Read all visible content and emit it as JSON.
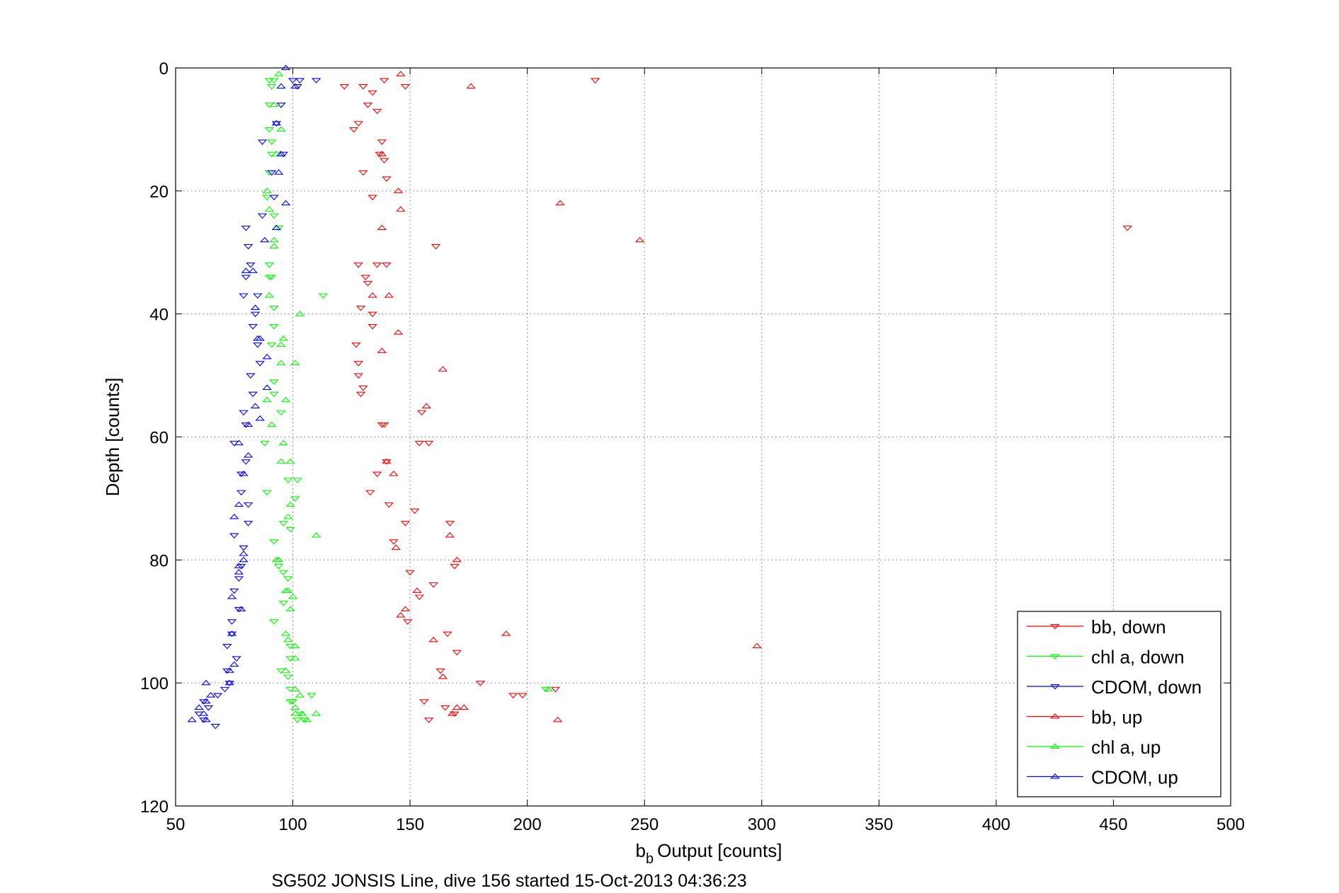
{
  "chart_data": {
    "type": "scatter",
    "xlabel_main": "Output [counts]",
    "xlabel_symbol": "b",
    "xlabel_subscript": "b",
    "ylabel": "Depth [counts]",
    "caption": "SG502 JONSIS Line, dive 156 started 15-Oct-2013 04:36:23",
    "xlim": [
      50,
      500
    ],
    "ylim": [
      0,
      120
    ],
    "y_reversed": true,
    "x_ticks": [
      50,
      100,
      150,
      200,
      250,
      300,
      350,
      400,
      450,
      500
    ],
    "y_ticks": [
      0,
      20,
      40,
      60,
      80,
      100,
      120
    ],
    "x_tick_labels": [
      "50",
      "100",
      "150",
      "200",
      "250",
      "300",
      "350",
      "400",
      "450",
      "500"
    ],
    "y_tick_labels": [
      "0",
      "20",
      "40",
      "60",
      "80",
      "100",
      "120"
    ],
    "grid": true,
    "legend_position": "bottom-right",
    "series": [
      {
        "name": "bb, down",
        "color": "#ff0000",
        "marker": "triangle-down",
        "points": [
          [
            130,
            3
          ],
          [
            134,
            4
          ],
          [
            122,
            3
          ],
          [
            139,
            2
          ],
          [
            148,
            3
          ],
          [
            229,
            2
          ],
          [
            132,
            6
          ],
          [
            136,
            7
          ],
          [
            126,
            10
          ],
          [
            128,
            9
          ],
          [
            138,
            12
          ],
          [
            137,
            14
          ],
          [
            139,
            15
          ],
          [
            130,
            17
          ],
          [
            134,
            21
          ],
          [
            140,
            18
          ],
          [
            161,
            29
          ],
          [
            456,
            26
          ],
          [
            136,
            32
          ],
          [
            128,
            32
          ],
          [
            131,
            34
          ],
          [
            132,
            35
          ],
          [
            129,
            39
          ],
          [
            134,
            40
          ],
          [
            134,
            42
          ],
          [
            127,
            45
          ],
          [
            128,
            48
          ],
          [
            128,
            50
          ],
          [
            130,
            52
          ],
          [
            129,
            53
          ],
          [
            140,
            32
          ],
          [
            139,
            58
          ],
          [
            138,
            58
          ],
          [
            155,
            56
          ],
          [
            140,
            64
          ],
          [
            136,
            66
          ],
          [
            133,
            69
          ],
          [
            141,
            71
          ],
          [
            152,
            72
          ],
          [
            158,
            61
          ],
          [
            154,
            61
          ],
          [
            148,
            74
          ],
          [
            143,
            77
          ],
          [
            160,
            84
          ],
          [
            154,
            86
          ],
          [
            149,
            90
          ],
          [
            150,
            82
          ],
          [
            167,
            74
          ],
          [
            163,
            98
          ],
          [
            170,
            95
          ],
          [
            180,
            100
          ],
          [
            156,
            103
          ],
          [
            158,
            106
          ],
          [
            165,
            104
          ],
          [
            169,
            105
          ],
          [
            198,
            102
          ],
          [
            194,
            102
          ],
          [
            212,
            101
          ],
          [
            169,
            81
          ],
          [
            166,
            92
          ]
        ]
      },
      {
        "name": "chl a, down",
        "color": "#00ff00",
        "marker": "triangle-down",
        "points": [
          [
            90,
            2
          ],
          [
            91,
            3
          ],
          [
            92,
            2
          ],
          [
            90,
            6
          ],
          [
            90,
            10
          ],
          [
            91,
            12
          ],
          [
            91,
            14
          ],
          [
            90,
            17
          ],
          [
            89,
            21
          ],
          [
            92,
            24
          ],
          [
            94,
            26
          ],
          [
            90,
            32
          ],
          [
            91,
            34
          ],
          [
            90,
            34
          ],
          [
            113,
            37
          ],
          [
            92,
            39
          ],
          [
            92,
            42
          ],
          [
            91,
            45
          ],
          [
            92,
            51
          ],
          [
            92,
            53
          ],
          [
            95,
            56
          ],
          [
            88,
            61
          ],
          [
            89,
            69
          ],
          [
            98,
            67
          ],
          [
            102,
            67
          ],
          [
            101,
            70
          ],
          [
            96,
            74
          ],
          [
            99,
            75
          ],
          [
            92,
            77
          ],
          [
            94,
            81
          ],
          [
            96,
            82
          ],
          [
            98,
            83
          ],
          [
            96,
            87
          ],
          [
            92,
            90
          ],
          [
            99,
            94
          ],
          [
            99,
            96
          ],
          [
            95,
            98
          ],
          [
            98,
            99
          ],
          [
            99,
            101
          ],
          [
            99,
            103
          ],
          [
            100,
            103
          ],
          [
            103,
            105
          ],
          [
            105,
            106
          ],
          [
            102,
            106
          ],
          [
            108,
            102
          ],
          [
            208,
            101
          ]
        ]
      },
      {
        "name": "CDOM, down",
        "color": "#0000ff",
        "marker": "triangle-down",
        "points": [
          [
            100,
            2
          ],
          [
            102,
            3
          ],
          [
            103,
            2
          ],
          [
            110,
            2
          ],
          [
            95,
            6
          ],
          [
            93,
            9
          ],
          [
            96,
            14
          ],
          [
            91,
            17
          ],
          [
            92,
            21
          ],
          [
            87,
            24
          ],
          [
            80,
            26
          ],
          [
            81,
            29
          ],
          [
            82,
            32
          ],
          [
            80,
            34
          ],
          [
            85,
            37
          ],
          [
            79,
            37
          ],
          [
            84,
            40
          ],
          [
            83,
            42
          ],
          [
            85,
            45
          ],
          [
            86,
            48
          ],
          [
            82,
            50
          ],
          [
            83,
            53
          ],
          [
            79,
            56
          ],
          [
            80,
            58
          ],
          [
            75,
            61
          ],
          [
            80,
            64
          ],
          [
            78,
            66
          ],
          [
            78,
            69
          ],
          [
            81,
            71
          ],
          [
            81,
            74
          ],
          [
            75,
            76
          ],
          [
            79,
            78
          ],
          [
            78,
            81
          ],
          [
            77,
            83
          ],
          [
            75,
            85
          ],
          [
            77,
            88
          ],
          [
            74,
            90
          ],
          [
            74,
            92
          ],
          [
            72,
            94
          ],
          [
            76,
            96
          ],
          [
            72,
            98
          ],
          [
            73,
            100
          ],
          [
            71,
            101
          ],
          [
            68,
            102
          ],
          [
            62,
            103
          ],
          [
            64,
            104
          ],
          [
            60,
            105
          ],
          [
            62,
            106
          ],
          [
            67,
            107
          ],
          [
            87,
            12
          ]
        ]
      },
      {
        "name": "bb, up",
        "color": "#ff0000",
        "marker": "triangle-up",
        "points": [
          [
            146,
            1
          ],
          [
            176,
            3
          ],
          [
            214,
            22
          ],
          [
            248,
            28
          ],
          [
            145,
            20
          ],
          [
            145,
            43
          ],
          [
            146,
            23
          ],
          [
            138,
            26
          ],
          [
            134,
            37
          ],
          [
            141,
            37
          ],
          [
            138,
            46
          ],
          [
            164,
            49
          ],
          [
            157,
            55
          ],
          [
            143,
            66
          ],
          [
            140,
            64
          ],
          [
            146,
            89
          ],
          [
            170,
            104
          ],
          [
            173,
            104
          ],
          [
            168,
            105
          ],
          [
            153,
            85
          ],
          [
            148,
            88
          ],
          [
            191,
            92
          ],
          [
            298,
            94
          ],
          [
            213,
            106
          ],
          [
            164,
            99
          ],
          [
            160,
            93
          ],
          [
            167,
            76
          ],
          [
            170,
            80
          ],
          [
            144,
            78
          ],
          [
            138,
            14
          ]
        ]
      },
      {
        "name": "chl a, up",
        "color": "#00ff00",
        "marker": "triangle-up",
        "points": [
          [
            94,
            1
          ],
          [
            92,
            6
          ],
          [
            95,
            10
          ],
          [
            93,
            14
          ],
          [
            89,
            20
          ],
          [
            90,
            23
          ],
          [
            92,
            28
          ],
          [
            92,
            29
          ],
          [
            90,
            37
          ],
          [
            95,
            45
          ],
          [
            95,
            48
          ],
          [
            101,
            48
          ],
          [
            103,
            40
          ],
          [
            96,
            44
          ],
          [
            89,
            54
          ],
          [
            91,
            58
          ],
          [
            96,
            61
          ],
          [
            95,
            64
          ],
          [
            99,
            71
          ],
          [
            98,
            73
          ],
          [
            110,
            76
          ],
          [
            93,
            80
          ],
          [
            94,
            80
          ],
          [
            97,
            85
          ],
          [
            98,
            85
          ],
          [
            99,
            88
          ],
          [
            97,
            92
          ],
          [
            98,
            93
          ],
          [
            101,
            94
          ],
          [
            101,
            96
          ],
          [
            97,
            98
          ],
          [
            101,
            101
          ],
          [
            103,
            102
          ],
          [
            101,
            104
          ],
          [
            101,
            105
          ],
          [
            104,
            105
          ],
          [
            106,
            106
          ],
          [
            110,
            105
          ],
          [
            209,
            101
          ],
          [
            97,
            54
          ],
          [
            99,
            64
          ],
          [
            100,
            86
          ]
        ]
      },
      {
        "name": "CDOM, up",
        "color": "#0000ff",
        "marker": "triangle-up",
        "points": [
          [
            97,
            0
          ],
          [
            101,
            3
          ],
          [
            95,
            3
          ],
          [
            93,
            9
          ],
          [
            95,
            14
          ],
          [
            94,
            17
          ],
          [
            97,
            22
          ],
          [
            88,
            28
          ],
          [
            93,
            26
          ],
          [
            83,
            33
          ],
          [
            80,
            33
          ],
          [
            84,
            39
          ],
          [
            85,
            44
          ],
          [
            86,
            44
          ],
          [
            89,
            47
          ],
          [
            89,
            52
          ],
          [
            84,
            55
          ],
          [
            86,
            57
          ],
          [
            81,
            58
          ],
          [
            77,
            61
          ],
          [
            81,
            63
          ],
          [
            79,
            66
          ],
          [
            77,
            71
          ],
          [
            75,
            73
          ],
          [
            79,
            79
          ],
          [
            77,
            82
          ],
          [
            79,
            80
          ],
          [
            74,
            86
          ],
          [
            78,
            88
          ],
          [
            74,
            92
          ],
          [
            73,
            98
          ],
          [
            73,
            100
          ],
          [
            63,
            100
          ],
          [
            65,
            102
          ],
          [
            63,
            103
          ],
          [
            60,
            104
          ],
          [
            62,
            105
          ],
          [
            57,
            106
          ],
          [
            63,
            106
          ],
          [
            75,
            97
          ],
          [
            77,
            81
          ]
        ]
      }
    ]
  }
}
